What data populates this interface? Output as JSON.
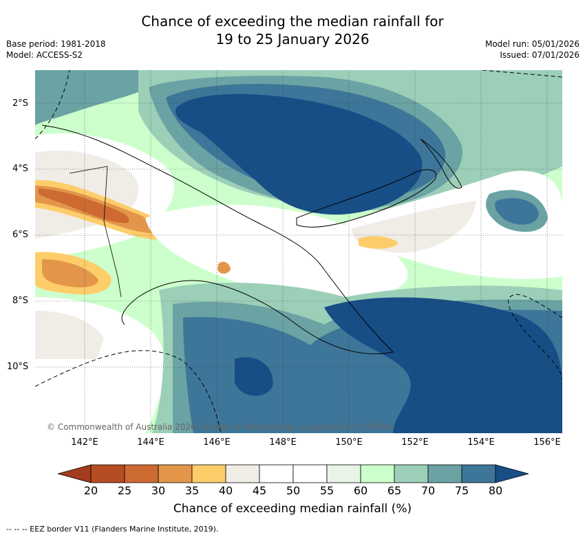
{
  "header": {
    "title_line1": "Chance of exceeding the median rainfall for",
    "title_line2": "19 to 25 January 2026",
    "base_period": "Base period: 1981-2018",
    "model": "Model: ACCESS-S2",
    "model_run": "Model run: 05/01/2026",
    "issued": "Issued: 07/01/2026"
  },
  "map": {
    "lat_labels": [
      "2°S",
      "4°S",
      "6°S",
      "8°S",
      "10°S"
    ],
    "lon_labels": [
      "142°E",
      "144°E",
      "146°E",
      "148°E",
      "150°E",
      "152°E",
      "154°E",
      "156°E"
    ],
    "copyright": "© Commonwealth of Australia 2026, Bureau of Meteorology, supported by COSPPac"
  },
  "legend": {
    "ticks": [
      "20",
      "25",
      "30",
      "35",
      "40",
      "45",
      "50",
      "55",
      "60",
      "65",
      "70",
      "75",
      "80"
    ],
    "colors": [
      "#a33b1c",
      "#b54c22",
      "#cd6a32",
      "#e3964a",
      "#fdcd6a",
      "#f0ece6",
      "#ffffff",
      "#ffffff",
      "#e8f5e6",
      "#ccffcc",
      "#9ccfb8",
      "#6ba3a4",
      "#3e7699",
      "#174e86"
    ],
    "label": "Chance of exceeding median rainfall (%)"
  },
  "footnote": "--  --  -- EEZ border V11 (Flanders Marine Institute, 2019)."
}
